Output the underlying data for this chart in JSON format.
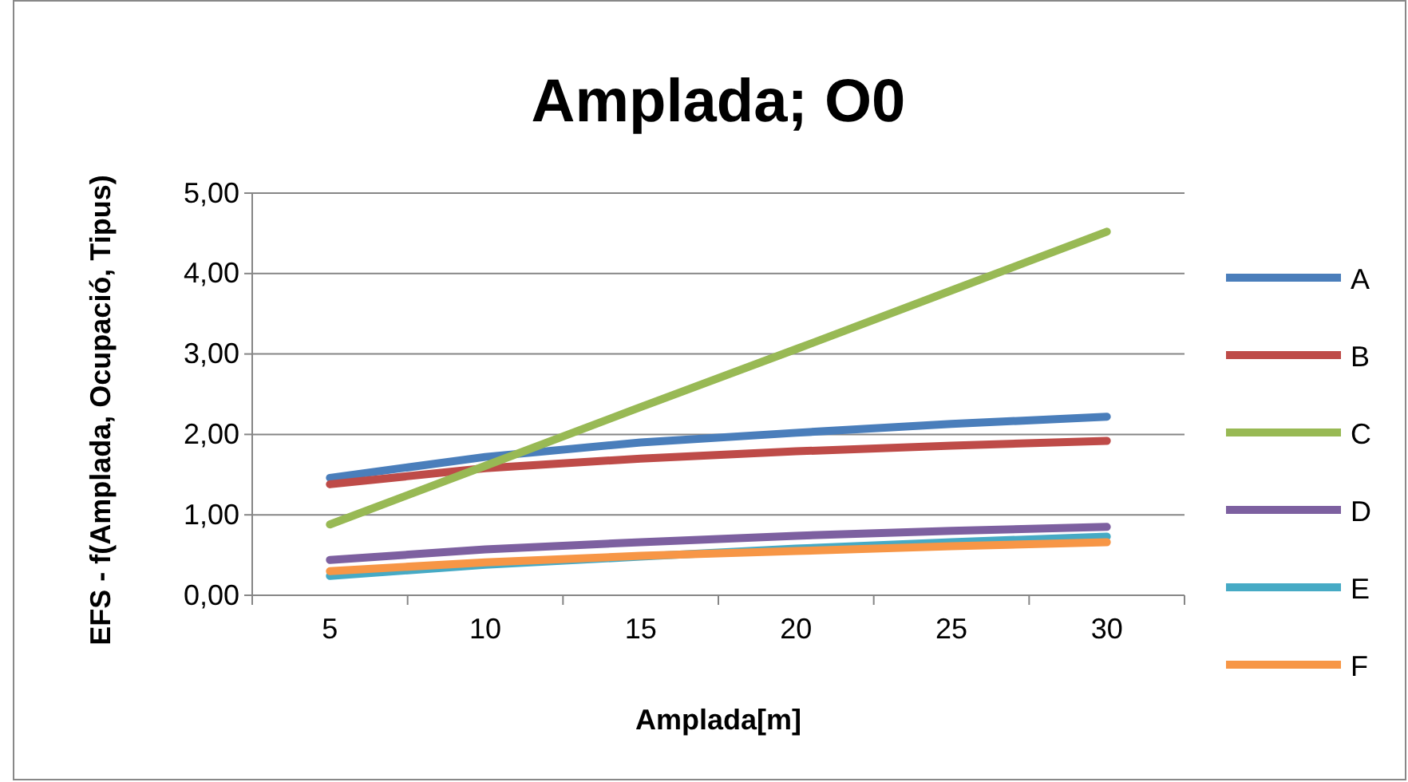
{
  "chart_data": {
    "type": "line",
    "title": "Amplada; O0",
    "xlabel": "Amplada[m]",
    "ylabel": "EFS - f(Amplada, Ocupació, Tipus)",
    "categories": [
      "5",
      "10",
      "15",
      "20",
      "25",
      "30"
    ],
    "ylim": [
      0,
      5
    ],
    "yticks": [
      {
        "value": 0,
        "label": "0,00"
      },
      {
        "value": 1,
        "label": "1,00"
      },
      {
        "value": 2,
        "label": "2,00"
      },
      {
        "value": 3,
        "label": "3,00"
      },
      {
        "value": 4,
        "label": "4,00"
      },
      {
        "value": 5,
        "label": "5,00"
      }
    ],
    "grid": "y",
    "legend": "right",
    "marker": "none",
    "line_style": "solid",
    "series": [
      {
        "name": "A",
        "color": "#4a7ebb",
        "values": [
          1.46,
          1.72,
          1.9,
          2.02,
          2.13,
          2.22
        ]
      },
      {
        "name": "B",
        "color": "#be4b48",
        "values": [
          1.38,
          1.58,
          1.7,
          1.79,
          1.86,
          1.92
        ]
      },
      {
        "name": "C",
        "color": "#98b954",
        "values": [
          0.88,
          1.61,
          2.34,
          3.06,
          3.79,
          4.52
        ]
      },
      {
        "name": "D",
        "color": "#7d60a0",
        "values": [
          0.44,
          0.57,
          0.66,
          0.74,
          0.8,
          0.85
        ]
      },
      {
        "name": "E",
        "color": "#46aac5",
        "values": [
          0.24,
          0.38,
          0.48,
          0.58,
          0.66,
          0.73
        ]
      },
      {
        "name": "F",
        "color": "#f79646",
        "values": [
          0.3,
          0.41,
          0.49,
          0.55,
          0.61,
          0.66
        ]
      }
    ]
  }
}
